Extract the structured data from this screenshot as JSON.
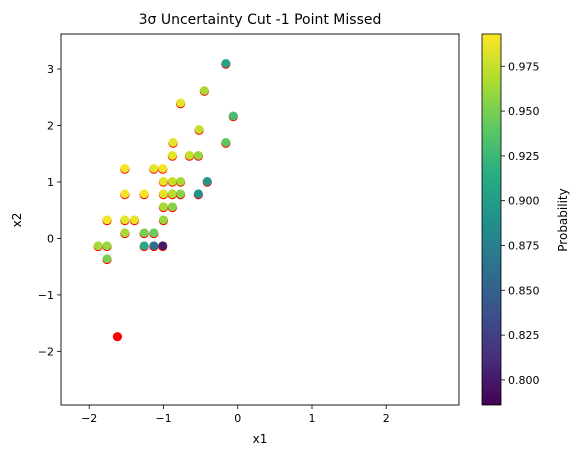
{
  "colors": {
    "missed_point": "#ff0000",
    "point_edge": "#ff0000",
    "axes": "#000000"
  },
  "chart_data": {
    "type": "scatter",
    "title": "3σ Uncertainty Cut -1 Point Missed",
    "xlabel": "x1",
    "ylabel": "x2",
    "xlim": [
      -2.38,
      2.98
    ],
    "ylim": [
      -2.95,
      3.62
    ],
    "xticks": [
      -2,
      -1,
      0,
      1,
      2
    ],
    "yticks": [
      -2,
      -1,
      0,
      1,
      2,
      3
    ],
    "x_tick_labels": [
      "−2",
      "−1",
      "0",
      "1",
      "2"
    ],
    "y_tick_labels": [
      "−2",
      "−1",
      "0",
      "1",
      "2",
      "3"
    ],
    "grid": false,
    "colorbar": {
      "label": "Probability",
      "colormap": "viridis",
      "range": [
        0.786,
        0.993
      ],
      "ticks": [
        0.8,
        0.825,
        0.85,
        0.875,
        0.9,
        0.925,
        0.95,
        0.975
      ],
      "tick_labels": [
        "0.800",
        "0.825",
        "0.850",
        "0.875",
        "0.900",
        "0.925",
        "0.950",
        "0.975"
      ]
    },
    "points": [
      {
        "x": -0.16,
        "y": 3.1,
        "p": 0.905
      },
      {
        "x": -0.77,
        "y": 2.4,
        "p": 0.985
      },
      {
        "x": -0.45,
        "y": 2.62,
        "p": 0.965
      },
      {
        "x": -0.06,
        "y": 2.17,
        "p": 0.93
      },
      {
        "x": -0.52,
        "y": 1.93,
        "p": 0.975
      },
      {
        "x": -0.87,
        "y": 1.7,
        "p": 0.985
      },
      {
        "x": -0.16,
        "y": 1.7,
        "p": 0.94
      },
      {
        "x": -0.88,
        "y": 1.47,
        "p": 0.985
      },
      {
        "x": -0.65,
        "y": 1.47,
        "p": 0.975
      },
      {
        "x": -0.53,
        "y": 1.47,
        "p": 0.96
      },
      {
        "x": -1.52,
        "y": 1.24,
        "p": 0.99
      },
      {
        "x": -1.13,
        "y": 1.24,
        "p": 0.985
      },
      {
        "x": -1.01,
        "y": 1.24,
        "p": 0.99
      },
      {
        "x": -1.0,
        "y": 1.01,
        "p": 0.985
      },
      {
        "x": -0.88,
        "y": 1.01,
        "p": 0.975
      },
      {
        "x": -0.77,
        "y": 1.01,
        "p": 0.965
      },
      {
        "x": -0.41,
        "y": 1.01,
        "p": 0.895
      },
      {
        "x": -1.52,
        "y": 0.79,
        "p": 0.99
      },
      {
        "x": -1.26,
        "y": 0.79,
        "p": 0.99
      },
      {
        "x": -1.0,
        "y": 0.79,
        "p": 0.985
      },
      {
        "x": -0.88,
        "y": 0.79,
        "p": 0.97
      },
      {
        "x": -0.77,
        "y": 0.79,
        "p": 0.955
      },
      {
        "x": -0.53,
        "y": 0.79,
        "p": 0.89
      },
      {
        "x": -1.0,
        "y": 0.56,
        "p": 0.965
      },
      {
        "x": -0.88,
        "y": 0.56,
        "p": 0.955
      },
      {
        "x": -1.76,
        "y": 0.33,
        "p": 0.99
      },
      {
        "x": -1.52,
        "y": 0.33,
        "p": 0.985
      },
      {
        "x": -1.39,
        "y": 0.33,
        "p": 0.985
      },
      {
        "x": -1.0,
        "y": 0.33,
        "p": 0.96
      },
      {
        "x": -1.52,
        "y": 0.1,
        "p": 0.965
      },
      {
        "x": -1.26,
        "y": 0.1,
        "p": 0.95
      },
      {
        "x": -1.13,
        "y": 0.1,
        "p": 0.945
      },
      {
        "x": -1.88,
        "y": -0.13,
        "p": 0.965
      },
      {
        "x": -1.76,
        "y": -0.13,
        "p": 0.96
      },
      {
        "x": -1.26,
        "y": -0.13,
        "p": 0.91
      },
      {
        "x": -1.13,
        "y": -0.13,
        "p": 0.86
      },
      {
        "x": -1.01,
        "y": -0.13,
        "p": 0.8
      },
      {
        "x": -1.76,
        "y": -0.36,
        "p": 0.95
      }
    ],
    "missed_points": [
      {
        "x": -1.62,
        "y": -1.74
      }
    ]
  }
}
